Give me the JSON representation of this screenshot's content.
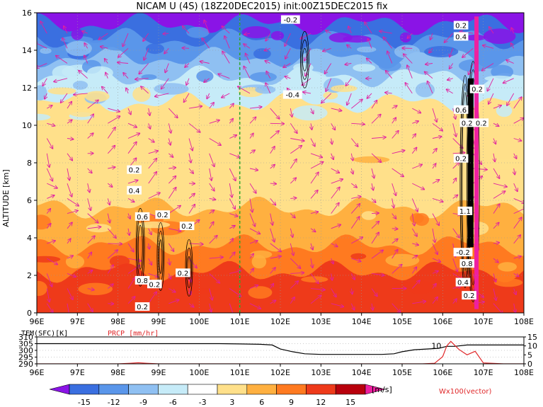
{
  "title": "NICAM U (4S) (18Z20DEC2015) init:00Z15DEC2015 fix",
  "chart_data": [
    {
      "type": "heatmap",
      "variable": "U",
      "ylabel": "ALTITUDE [km]",
      "ylim": [
        0,
        16
      ],
      "yticks": [
        0,
        2,
        4,
        6,
        8,
        10,
        12,
        14,
        16
      ],
      "xlim": [
        96,
        108
      ],
      "xtick_labels": [
        "96E",
        "97E",
        "98E",
        "99E",
        "100E",
        "101E",
        "102E",
        "103E",
        "104E",
        "105E",
        "106E",
        "107E",
        "108E"
      ],
      "marker_line_lon": 101,
      "grid": true,
      "overlay": "Wx100(vector)",
      "layers": [
        {
          "top": 16,
          "u": -15
        },
        {
          "top": 15.4,
          "u": -12
        },
        {
          "top": 14.6,
          "u": -9
        },
        {
          "top": 13.6,
          "u": -6
        },
        {
          "top": 12.6,
          "u": -3
        },
        {
          "top": 11.2,
          "u": 3
        },
        {
          "top": 8.6,
          "u": 6
        },
        {
          "top": 5.6,
          "u": 9
        },
        {
          "top": 3.6,
          "u": 12
        },
        {
          "top": 2.2,
          "u": 15
        }
      ],
      "contour_labels": [
        {
          "lon": 102.25,
          "alt": 15.6,
          "text": "-0.2"
        },
        {
          "lon": 102.3,
          "alt": 11.6,
          "text": "-0.4"
        },
        {
          "lon": 98.4,
          "alt": 7.6,
          "text": "0.2"
        },
        {
          "lon": 98.4,
          "alt": 6.5,
          "text": "0.4"
        },
        {
          "lon": 98.6,
          "alt": 5.1,
          "text": "0.6"
        },
        {
          "lon": 99.1,
          "alt": 5.2,
          "text": "0.2"
        },
        {
          "lon": 99.7,
          "alt": 4.6,
          "text": "0.2"
        },
        {
          "lon": 98.6,
          "alt": 1.7,
          "text": "0.8"
        },
        {
          "lon": 98.9,
          "alt": 1.5,
          "text": "0.2"
        },
        {
          "lon": 99.6,
          "alt": 2.1,
          "text": "0.2"
        },
        {
          "lon": 98.6,
          "alt": 0.3,
          "text": "0.2"
        },
        {
          "lon": 106.45,
          "alt": 15.3,
          "text": "0.2"
        },
        {
          "lon": 106.45,
          "alt": 14.7,
          "text": "0.4"
        },
        {
          "lon": 106.85,
          "alt": 11.9,
          "text": "0.2"
        },
        {
          "lon": 106.45,
          "alt": 10.8,
          "text": "0.6"
        },
        {
          "lon": 106.6,
          "alt": 10.1,
          "text": "0.2"
        },
        {
          "lon": 106.95,
          "alt": 10.1,
          "text": "0.2"
        },
        {
          "lon": 106.45,
          "alt": 8.2,
          "text": "0.2"
        },
        {
          "lon": 106.55,
          "alt": 5.4,
          "text": "1.1"
        },
        {
          "lon": 106.5,
          "alt": 3.2,
          "text": "-0.2"
        },
        {
          "lon": 106.6,
          "alt": 2.6,
          "text": "0.8"
        },
        {
          "lon": 106.5,
          "alt": 1.6,
          "text": "0.4"
        },
        {
          "lon": 106.65,
          "alt": 0.9,
          "text": "0.2"
        }
      ]
    },
    {
      "type": "line",
      "series": [
        {
          "name": "TEM(SFC)[K]",
          "x": [
            96,
            97,
            98,
            99,
            100,
            100.5,
            101,
            101.5,
            101.8,
            102,
            102.3,
            102.6,
            103,
            103.5,
            104,
            104.5,
            104.8,
            105,
            105.3,
            105.6,
            105.9,
            106.1,
            106.3,
            106.6,
            107,
            107.5,
            108
          ],
          "values": [
            305,
            305,
            305,
            305,
            305,
            305,
            304.8,
            304.5,
            304,
            301,
            299,
            297.5,
            297,
            297,
            297,
            297,
            297.5,
            299,
            300.5,
            301,
            301.5,
            303,
            303,
            304,
            304,
            304,
            304
          ]
        },
        {
          "name": "PRCP [mm/hr]",
          "x": [
            96,
            97,
            98,
            98.3,
            98.5,
            98.7,
            99,
            100,
            104,
            105.5,
            105.8,
            106,
            106.1,
            106.2,
            106.4,
            106.6,
            106.8,
            107,
            107.5,
            108
          ],
          "values": [
            0,
            0,
            0,
            0.3,
            0.6,
            0.3,
            0,
            0,
            0,
            0,
            0.3,
            4,
            10,
            12.5,
            8,
            5,
            7,
            0.5,
            0,
            0
          ]
        }
      ],
      "y_left": {
        "range": [
          290,
          310
        ],
        "ticks": [
          290,
          295,
          300,
          305,
          310
        ]
      },
      "y_right": {
        "range": [
          0,
          15
        ],
        "ticks": [
          0,
          5,
          10,
          15
        ]
      },
      "xlim": [
        96,
        108
      ],
      "xtick_labels": [
        "96E",
        "97E",
        "98E",
        "99E",
        "100E",
        "101E",
        "102E",
        "103E",
        "104E",
        "105E",
        "106E",
        "107E",
        "108E"
      ],
      "annotation": "10"
    }
  ],
  "colorbar": {
    "ticks": [
      "-15",
      "-12",
      "-9",
      "-6",
      "-3",
      "3",
      "6",
      "9",
      "12",
      "15"
    ],
    "unit": "[m/s]",
    "colors": [
      "#8a14e6",
      "#3a6fe0",
      "#5a96ea",
      "#8fc0f2",
      "#c6ebf8",
      "#ffffff",
      "#ffe08a",
      "#ffb040",
      "#ff7a20",
      "#ee3a1a",
      "#b8000c",
      "#ee20a0"
    ]
  },
  "overlay_label": "Wx100(vector)"
}
